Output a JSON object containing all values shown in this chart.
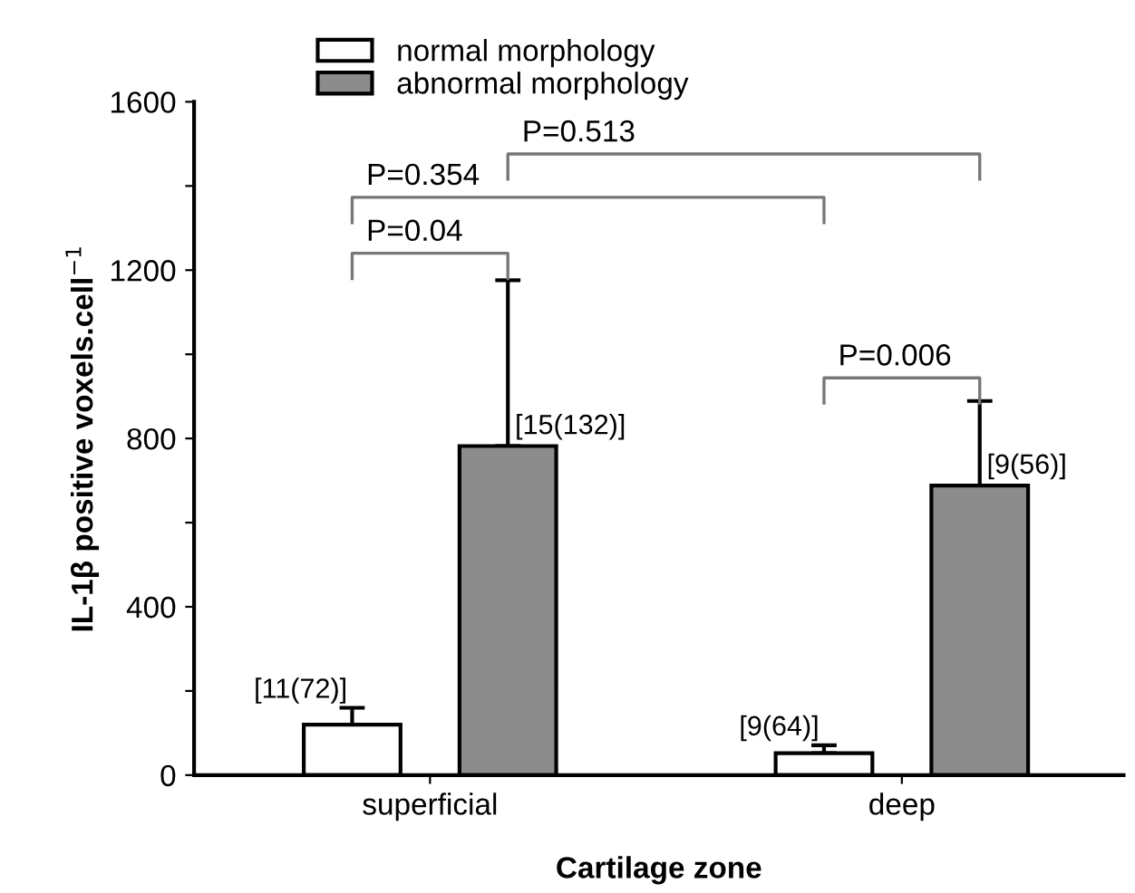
{
  "chart_data": {
    "type": "bar",
    "xlabel": "Cartilage zone",
    "ylabel": "IL-1β positive voxels.cell$^{−1}$",
    "categories": [
      "superficial",
      "deep"
    ],
    "series": [
      {
        "name": "normal morphology",
        "color": "#ffffff",
        "values": [
          120,
          52
        ],
        "errors": [
          [
            120,
            160
          ],
          [
            52,
            71
          ]
        ],
        "value_labels": [
          "[11(72)]",
          "[9(64)]"
        ]
      },
      {
        "name": "abnormal morphology",
        "color": "#8c8c8c",
        "values": [
          782,
          688
        ],
        "errors": [
          [
            782,
            1176
          ],
          [
            688,
            889
          ]
        ],
        "value_labels": [
          "[15(132)]",
          "[9(56)]"
        ]
      }
    ],
    "ylim": [
      0,
      1600
    ],
    "yticks": [
      0,
      {
        "value": 200,
        "label": null
      },
      400,
      {
        "value": 600,
        "label": null
      },
      800,
      {
        "value": 1000,
        "label": null
      },
      1200,
      {
        "value": 1400,
        "label": null
      },
      1600
    ],
    "annotations": [
      "P=0.04",
      "P=0.354",
      "P=0.513",
      "P=0.006"
    ],
    "grid": false,
    "legend": "top left"
  }
}
